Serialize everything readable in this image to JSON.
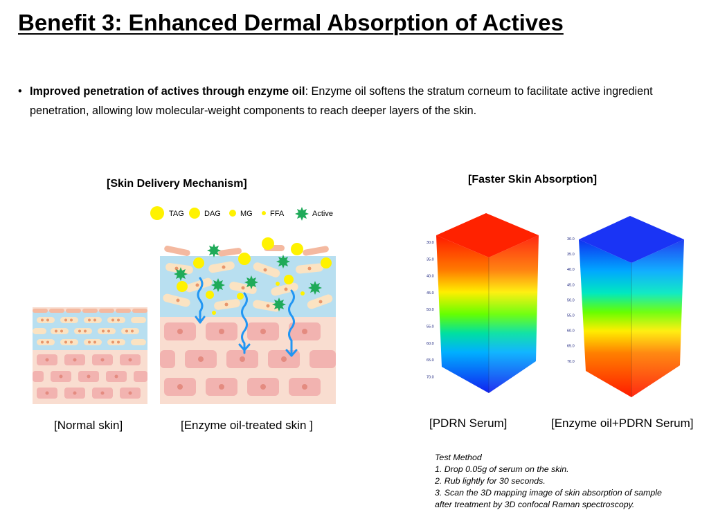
{
  "title": "Benefit 3: Enhanced Dermal Absorption of Actives",
  "bullet": {
    "lead": "Improved penetration of actives through enzyme oil",
    "text": ": Enzyme oil softens the stratum corneum to facilitate active ingredient penetration, allowing low molecular-weight components to reach deeper layers of the skin."
  },
  "mechanism": {
    "title": "[Skin Delivery Mechanism]",
    "legend": [
      {
        "label": "TAG",
        "icon": "large-yellow-circle"
      },
      {
        "label": "DAG",
        "icon": "medium-yellow-circle"
      },
      {
        "label": "MG",
        "icon": "small-yellow-circle"
      },
      {
        "label": "FFA",
        "icon": "tiny-yellow-circle"
      },
      {
        "label": "Active",
        "icon": "green-star"
      }
    ],
    "captions": {
      "normal": "[Normal skin]",
      "treated": "[Enzyme oil-treated skin ]"
    }
  },
  "absorption": {
    "title": "[Faster Skin Absorption]",
    "left_ticks": [
      "30.0",
      "35.0",
      "40.0",
      "45.0",
      "50.0",
      "55.0",
      "60.0",
      "65.0",
      "70.0"
    ],
    "right_ticks": [
      "30.0",
      "35.0",
      "40.0",
      "45.0",
      "50.0",
      "55.0",
      "60.0",
      "65.0",
      "70.0"
    ],
    "captions": {
      "pdrn": "[PDRN Serum]",
      "enzyme": "[Enzyme oil+PDRN Serum]"
    }
  },
  "test_method": {
    "heading": "Test Method",
    "step1": "1. Drop 0.05g of serum on the skin.",
    "step2": "2. Rub lightly for 30 seconds.",
    "step3a": "3. Scan the 3D mapping image of skin absorption  of sample",
    "step3b": "after treatment by 3D confocal Raman spectroscopy."
  },
  "colors": {
    "skin_pink": "#f9ddd0",
    "cell_pink": "#f2b3b0",
    "blue_layer": "#b8dff0",
    "active_green": "#1faa59",
    "lipid_yellow": "#fff200",
    "arrow_blue": "#2196f3"
  }
}
